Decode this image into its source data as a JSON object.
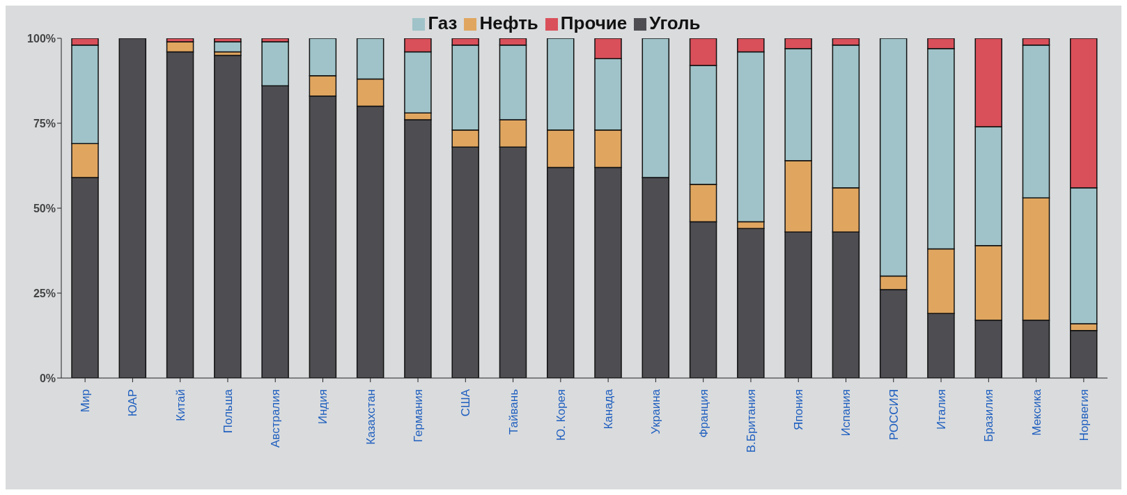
{
  "chart_data": {
    "type": "bar",
    "stacked": true,
    "categories": [
      "Мир",
      "ЮАР",
      "Китай",
      "Польша",
      "Австралия",
      "Индия",
      "Казахстан",
      "Германия",
      "США",
      "Тайвань",
      "Ю. Корея",
      "Канада",
      "Украина",
      "Франция",
      "В.Британия",
      "Япония",
      "Испания",
      "РОССИЯ",
      "Италия",
      "Бразилия",
      "Мексика",
      "Норвегия"
    ],
    "series": [
      {
        "name": "Уголь",
        "color": "#4d4d52",
        "values": [
          59,
          100,
          96,
          95,
          86,
          83,
          80,
          76,
          68,
          68,
          62,
          62,
          59,
          46,
          44,
          43,
          43,
          26,
          19,
          17,
          17,
          14
        ]
      },
      {
        "name": "Нефть",
        "color": "#e0a660",
        "values": [
          10,
          0,
          3,
          1,
          0,
          6,
          8,
          2,
          5,
          8,
          11,
          11,
          0,
          11,
          2,
          21,
          13,
          4,
          19,
          22,
          36,
          2
        ]
      },
      {
        "name": "Газ",
        "color": "#9fc3c8",
        "values": [
          29,
          0,
          0,
          3,
          13,
          11,
          12,
          18,
          25,
          22,
          27,
          21,
          41,
          35,
          50,
          33,
          42,
          70,
          59,
          35,
          45,
          40
        ]
      },
      {
        "name": "Прочие",
        "color": "#d9505a",
        "values": [
          2,
          0,
          1,
          1,
          1,
          0,
          0,
          4,
          2,
          2,
          0,
          6,
          0,
          8,
          4,
          3,
          2,
          0,
          3,
          26,
          2,
          44
        ]
      }
    ],
    "ylim": [
      0,
      100
    ],
    "yticks": [
      {
        "value": 0,
        "label": "0%"
      },
      {
        "value": 25,
        "label": "25%"
      },
      {
        "value": 50,
        "label": "50%"
      },
      {
        "value": 75,
        "label": "75%"
      },
      {
        "value": 100,
        "label": "100%"
      }
    ],
    "grid": false,
    "legend": "top"
  }
}
